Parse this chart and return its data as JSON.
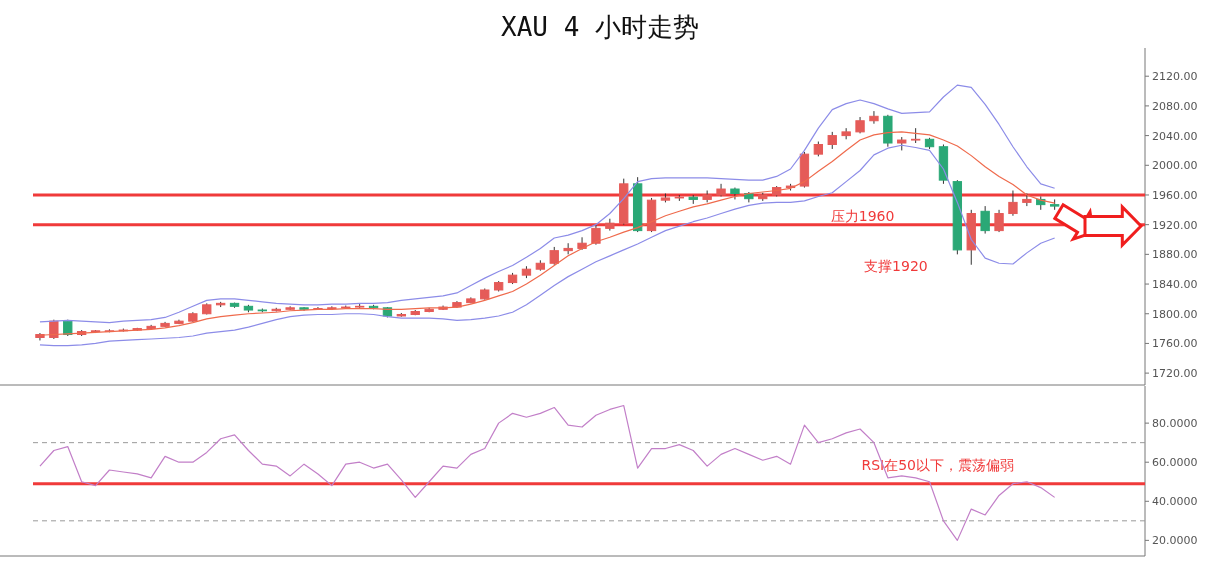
{
  "chart_data": [
    {
      "type": "candlestick",
      "title": "XAU 4 小时走势",
      "tick_labels": "y",
      "categories": [
        null,
        null,
        null,
        null,
        null,
        null,
        null,
        null,
        null,
        null,
        null,
        null,
        null,
        null,
        null,
        null,
        null,
        null,
        null,
        null,
        null,
        null,
        null,
        null,
        null,
        null,
        null,
        null,
        null,
        null,
        null,
        null,
        null,
        null,
        null,
        null,
        null,
        null,
        null,
        null,
        null,
        null,
        null,
        null,
        null,
        null,
        null,
        null,
        null,
        null,
        null,
        null,
        null,
        null,
        null,
        null,
        null,
        null,
        null,
        null,
        null,
        null,
        null,
        null,
        null,
        null,
        null,
        null,
        null,
        null,
        null,
        null,
        null,
        null,
        null,
        null,
        null,
        null,
        null,
        null
      ],
      "ohlc": [
        [
          1768,
          1774,
          1764,
          1772
        ],
        [
          1768,
          1792,
          1766,
          1790
        ],
        [
          1790,
          1792,
          1770,
          1772
        ],
        [
          1772,
          1778,
          1770,
          1776
        ],
        [
          1776,
          1778,
          1774,
          1777
        ],
        [
          1776,
          1779,
          1775,
          1777
        ],
        [
          1777,
          1780,
          1776,
          1778
        ],
        [
          1778,
          1781,
          1777,
          1780
        ],
        [
          1780,
          1785,
          1779,
          1783
        ],
        [
          1783,
          1789,
          1782,
          1787
        ],
        [
          1787,
          1792,
          1786,
          1790
        ],
        [
          1790,
          1802,
          1789,
          1800
        ],
        [
          1800,
          1814,
          1799,
          1812
        ],
        [
          1812,
          1816,
          1809,
          1814
        ],
        [
          1814,
          1815,
          1808,
          1810
        ],
        [
          1810,
          1812,
          1802,
          1805
        ],
        [
          1805,
          1807,
          1802,
          1804
        ],
        [
          1804,
          1808,
          1803,
          1806
        ],
        [
          1806,
          1810,
          1805,
          1808
        ],
        [
          1808,
          1809,
          1804,
          1806
        ],
        [
          1806,
          1809,
          1805,
          1807
        ],
        [
          1807,
          1810,
          1805,
          1808
        ],
        [
          1808,
          1811,
          1807,
          1809
        ],
        [
          1809,
          1813,
          1808,
          1810
        ],
        [
          1810,
          1812,
          1806,
          1808
        ],
        [
          1808,
          1809,
          1795,
          1797
        ],
        [
          1797,
          1801,
          1796,
          1799
        ],
        [
          1799,
          1805,
          1798,
          1803
        ],
        [
          1803,
          1808,
          1802,
          1806
        ],
        [
          1806,
          1811,
          1805,
          1809
        ],
        [
          1809,
          1817,
          1808,
          1815
        ],
        [
          1815,
          1822,
          1814,
          1820
        ],
        [
          1820,
          1834,
          1819,
          1832
        ],
        [
          1832,
          1844,
          1830,
          1842
        ],
        [
          1842,
          1855,
          1840,
          1852
        ],
        [
          1852,
          1864,
          1848,
          1860
        ],
        [
          1860,
          1872,
          1858,
          1868
        ],
        [
          1868,
          1890,
          1866,
          1885
        ],
        [
          1885,
          1895,
          1880,
          1888
        ],
        [
          1888,
          1903,
          1886,
          1895
        ],
        [
          1895,
          1920,
          1893,
          1915
        ],
        [
          1915,
          1928,
          1912,
          1922
        ],
        [
          1922,
          1982,
          1920,
          1975
        ],
        [
          1975,
          1984,
          1910,
          1912
        ],
        [
          1912,
          1956,
          1910,
          1953
        ],
        [
          1953,
          1962,
          1950,
          1956
        ],
        [
          1956,
          1960,
          1952,
          1957
        ],
        [
          1957,
          1960,
          1948,
          1954
        ],
        [
          1954,
          1966,
          1950,
          1960
        ],
        [
          1960,
          1975,
          1958,
          1968
        ],
        [
          1968,
          1970,
          1954,
          1962
        ],
        [
          1962,
          1964,
          1950,
          1955
        ],
        [
          1955,
          1963,
          1952,
          1960
        ],
        [
          1960,
          1972,
          1958,
          1970
        ],
        [
          1970,
          1975,
          1966,
          1972
        ],
        [
          1972,
          2018,
          1970,
          2015
        ],
        [
          2015,
          2032,
          2012,
          2028
        ],
        [
          2028,
          2045,
          2022,
          2040
        ],
        [
          2040,
          2050,
          2035,
          2045
        ],
        [
          2045,
          2065,
          2043,
          2060
        ],
        [
          2060,
          2073,
          2056,
          2066
        ],
        [
          2066,
          2068,
          2025,
          2030
        ],
        [
          2030,
          2038,
          2020,
          2034
        ],
        [
          2034,
          2050,
          2030,
          2035
        ],
        [
          2035,
          2037,
          2022,
          2025
        ],
        [
          2025,
          2028,
          1975,
          1980
        ],
        [
          1978,
          1980,
          1880,
          1886
        ],
        [
          1886,
          1940,
          1866,
          1935
        ],
        [
          1938,
          1945,
          1908,
          1912
        ],
        [
          1912,
          1940,
          1910,
          1935
        ],
        [
          1935,
          1966,
          1932,
          1950
        ],
        [
          1950,
          1962,
          1945,
          1954
        ],
        [
          1954,
          1958,
          1940,
          1947
        ],
        [
          1947,
          1954,
          1940,
          1945
        ],
        null,
        null,
        null,
        null,
        null,
        null
      ],
      "colors": [
        "#e55b58",
        "#e55b58",
        "#2aa876",
        "#e55b58",
        "#e55b58",
        "#e55b58",
        "#e55b58",
        "#e55b58",
        "#e55b58",
        "#e55b58",
        "#e55b58",
        "#e55b58",
        "#e55b58",
        "#e55b58",
        "#2aa876",
        "#2aa876",
        "#2aa876",
        "#e55b58",
        "#e55b58",
        "#2aa876",
        "#e55b58",
        "#e55b58",
        "#e55b58",
        "#e55b58",
        "#2aa876",
        "#2aa876",
        "#e55b58",
        "#e55b58",
        "#e55b58",
        "#e55b58",
        "#e55b58",
        "#e55b58",
        "#e55b58",
        "#e55b58",
        "#e55b58",
        "#e55b58",
        "#e55b58",
        "#e55b58",
        "#e55b58",
        "#e55b58",
        "#e55b58",
        "#e55b58",
        "#e55b58",
        "#2aa876",
        "#e55b58",
        "#e55b58",
        "#e55b58",
        "#2aa876",
        "#e55b58",
        "#e55b58",
        "#2aa876",
        "#2aa876",
        "#e55b58",
        "#e55b58",
        "#e55b58",
        "#e55b58",
        "#e55b58",
        "#e55b58",
        "#e55b58",
        "#e55b58",
        "#e55b58",
        "#2aa876",
        "#e55b58",
        "#e55b58",
        "#2aa876",
        "#2aa876",
        "#2aa876",
        "#e55b58",
        "#2aa876",
        "#e55b58",
        "#e55b58",
        "#e55b58",
        "#2aa876",
        "#2aa876",
        null,
        null,
        null,
        null,
        null,
        null
      ],
      "series": [
        {
          "type": "line",
          "color": "#8c8ce8",
          "values": [
            1789,
            1790,
            1791,
            1790,
            1789,
            1788,
            1790,
            1791,
            1792,
            1795,
            1802,
            1810,
            1818,
            1820,
            1820,
            1818,
            1816,
            1814,
            1813,
            1812,
            1812,
            1813,
            1813,
            1814,
            1814,
            1815,
            1818,
            1820,
            1822,
            1824,
            1828,
            1838,
            1848,
            1857,
            1865,
            1876,
            1888,
            1902,
            1906,
            1912,
            1920,
            1935,
            1955,
            1978,
            1982,
            1983,
            1983,
            1983,
            1983,
            1982,
            1981,
            1980,
            1980,
            1985,
            1995,
            2020,
            2050,
            2075,
            2083,
            2088,
            2083,
            2076,
            2070,
            2071,
            2072,
            2092,
            2108,
            2105,
            2082,
            2055,
            2025,
            1998,
            1975,
            1969,
            null,
            null,
            null,
            null,
            null,
            null
          ]
        },
        {
          "type": "line",
          "color": "#ef6a4c",
          "values": [
            1771,
            1772,
            1773,
            1774,
            1775,
            1776,
            1777,
            1778,
            1779,
            1781,
            1784,
            1788,
            1793,
            1796,
            1798,
            1800,
            1801,
            1802,
            1804,
            1805,
            1806,
            1806,
            1807,
            1807,
            1807,
            1806,
            1806,
            1807,
            1808,
            1808,
            1809,
            1813,
            1818,
            1824,
            1830,
            1840,
            1852,
            1865,
            1878,
            1888,
            1897,
            1903,
            1910,
            1916,
            1924,
            1932,
            1938,
            1944,
            1948,
            1953,
            1958,
            1962,
            1964,
            1966,
            1969,
            1978,
            1992,
            2005,
            2020,
            2034,
            2041,
            2044,
            2045,
            2043,
            2041,
            2034,
            2026,
            2013,
            1998,
            1985,
            1974,
            1960,
            1953,
            1949,
            null,
            null,
            null,
            null,
            null,
            null
          ]
        },
        {
          "type": "line",
          "color": "#8c8ce8",
          "values": [
            1758,
            1757,
            1757,
            1758,
            1760,
            1763,
            1764,
            1765,
            1766,
            1767,
            1768,
            1770,
            1774,
            1776,
            1778,
            1782,
            1787,
            1792,
            1796,
            1798,
            1799,
            1799,
            1800,
            1800,
            1799,
            1796,
            1794,
            1794,
            1794,
            1793,
            1791,
            1792,
            1794,
            1797,
            1802,
            1812,
            1825,
            1838,
            1850,
            1860,
            1870,
            1878,
            1886,
            1894,
            1903,
            1912,
            1918,
            1924,
            1929,
            1935,
            1941,
            1946,
            1949,
            1950,
            1950,
            1952,
            1958,
            1963,
            1978,
            1993,
            2014,
            2023,
            2027,
            2024,
            2020,
            1995,
            1950,
            1900,
            1875,
            1868,
            1867,
            1882,
            1895,
            1902,
            null,
            null,
            null,
            null,
            null,
            null
          ]
        }
      ],
      "ylim": [
        1704,
        2158
      ],
      "yticks": [
        {
          "value": 1720,
          "label": "1720.00"
        },
        {
          "value": 1760,
          "label": "1760.00"
        },
        {
          "value": 1800,
          "label": "1800.00"
        },
        {
          "value": 1840,
          "label": "1840.00"
        },
        {
          "value": 1880,
          "label": "1880.00"
        },
        {
          "value": 1920,
          "label": "1920.00"
        },
        {
          "value": 1960,
          "label": "1960.00"
        },
        {
          "value": 2000,
          "label": "2000.00"
        },
        {
          "value": 2040,
          "label": "2040.00"
        },
        {
          "value": 2080,
          "label": "2080.00"
        },
        {
          "value": 2120,
          "label": "2120.00"
        }
      ],
      "ref_lines": [
        {
          "axis": "y",
          "value": 1960,
          "label": "压力1960",
          "color": "#f03a3a",
          "line_style": "solid"
        },
        {
          "axis": "y",
          "value": 1920,
          "label": "支撑1920",
          "color": "#f03a3a",
          "line_style": "solid"
        }
      ]
    },
    {
      "type": "line",
      "tick_labels": "y",
      "categories": [
        null,
        null,
        null,
        null,
        null,
        null,
        null,
        null,
        null,
        null,
        null,
        null,
        null,
        null,
        null,
        null,
        null,
        null,
        null,
        null,
        null,
        null,
        null,
        null,
        null,
        null,
        null,
        null,
        null,
        null,
        null,
        null,
        null,
        null,
        null,
        null,
        null,
        null,
        null,
        null,
        null,
        null,
        null,
        null,
        null,
        null,
        null,
        null,
        null,
        null,
        null,
        null,
        null,
        null,
        null,
        null,
        null,
        null,
        null,
        null,
        null,
        null,
        null,
        null,
        null,
        null,
        null,
        null,
        null,
        null,
        null,
        null,
        null,
        null,
        null,
        null,
        null,
        null,
        null,
        null
      ],
      "series": [
        {
          "color": "#c27fc8",
          "values": [
            58,
            66,
            68,
            50,
            48,
            56,
            55,
            54,
            52,
            63,
            60,
            60,
            65,
            72,
            74,
            66,
            59,
            58,
            53,
            59,
            54,
            48,
            59,
            60,
            57,
            59,
            51,
            42,
            50,
            58,
            57,
            64,
            67,
            80,
            85,
            83,
            85,
            88,
            79,
            78,
            84,
            87,
            89,
            57,
            67,
            67,
            69,
            66,
            58,
            64,
            67,
            64,
            61,
            63,
            59,
            79,
            70,
            72,
            75,
            77,
            70,
            52,
            53,
            52,
            50,
            30,
            20,
            36,
            33,
            43,
            49,
            50,
            47,
            42,
            null,
            null,
            null,
            null,
            null,
            null
          ]
        }
      ],
      "ylim": [
        12,
        99
      ],
      "yticks": [
        {
          "value": 20,
          "label": "20.0000"
        },
        {
          "value": 40,
          "label": "40.0000"
        },
        {
          "value": 60,
          "label": "60.0000"
        },
        {
          "value": 80,
          "label": "80.0000"
        }
      ],
      "ref_lines": [
        {
          "axis": "y",
          "value": 70,
          "color": "#999999",
          "line_style": "dashed"
        },
        {
          "axis": "y",
          "value": 30,
          "color": "#999999",
          "line_style": "dashed"
        },
        {
          "axis": "y",
          "value": 49,
          "label": "RSI在50以下，震荡偏弱",
          "color": "#f03a3a",
          "line_style": "solid"
        }
      ]
    }
  ]
}
